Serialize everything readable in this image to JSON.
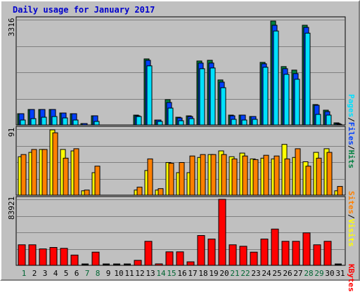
{
  "title": "Daily usage for January 2017",
  "colors": {
    "hits": "#008040",
    "files": "#0040ff",
    "pages": "#00e0ff",
    "visits": "#ffff00",
    "sites": "#ff8000",
    "kbytes": "#ff0000",
    "weekday": "#000000",
    "weekend": "#006633"
  },
  "chart_data": [
    {
      "type": "bar",
      "name": "hits_files_pages",
      "max_label": "3316",
      "ylim": [
        0,
        3316
      ],
      "legend": [
        {
          "name": "Pages",
          "color": "#00e0ff"
        },
        {
          "name": "Files",
          "color": "#0040ff"
        },
        {
          "name": "Hits",
          "color": "#008040"
        }
      ],
      "categories": [
        "1",
        "2",
        "3",
        "4",
        "5",
        "6",
        "7",
        "8",
        "9",
        "10",
        "11",
        "12",
        "13",
        "14",
        "15",
        "16",
        "17",
        "18",
        "19",
        "20",
        "21",
        "22",
        "23",
        "24",
        "25",
        "26",
        "27",
        "28",
        "29",
        "30",
        "31"
      ],
      "series": [
        {
          "name": "Hits",
          "values": [
            354,
            487,
            487,
            487,
            376,
            354,
            44,
            288,
            0,
            0,
            0,
            310,
            2080,
            155,
            797,
            243,
            287,
            2014,
            2036,
            1417,
            310,
            310,
            266,
            1971,
            3272,
            1838,
            1727,
            3140,
            642,
            465,
            66
          ]
        },
        {
          "name": "Files",
          "values": [
            354,
            487,
            487,
            487,
            376,
            354,
            44,
            288,
            0,
            0,
            0,
            288,
            2036,
            155,
            708,
            221,
            265,
            1949,
            1949,
            1350,
            288,
            310,
            266,
            1927,
            3140,
            1772,
            1617,
            3073,
            620,
            420,
            44
          ]
        },
        {
          "name": "Pages",
          "values": [
            155,
            199,
            243,
            265,
            221,
            155,
            0,
            111,
            0,
            0,
            0,
            266,
            1861,
            111,
            531,
            133,
            199,
            1771,
            1794,
            1173,
            177,
            155,
            177,
            1817,
            2959,
            1594,
            1439,
            2891,
            332,
            310,
            22
          ]
        }
      ]
    },
    {
      "type": "bar",
      "name": "visits_sites",
      "max_label": "91",
      "ylim": [
        0,
        91
      ],
      "legend": [
        {
          "name": "Sites",
          "color": "#ff8000"
        },
        {
          "name": "Visits",
          "color": "#ffff00"
        }
      ],
      "categories": [
        "1",
        "2",
        "3",
        "4",
        "5",
        "6",
        "7",
        "8",
        "9",
        "10",
        "11",
        "12",
        "13",
        "14",
        "15",
        "16",
        "17",
        "18",
        "19",
        "20",
        "21",
        "22",
        "23",
        "24",
        "25",
        "26",
        "27",
        "28",
        "29",
        "30",
        "31"
      ],
      "series": [
        {
          "name": "Visits",
          "values": [
            53,
            59,
            63,
            90,
            63,
            61,
            6,
            31,
            0,
            0,
            0,
            7,
            34,
            7,
            45,
            31,
            31,
            52,
            56,
            61,
            53,
            58,
            50,
            51,
            50,
            70,
            52,
            46,
            59,
            64,
            6
          ]
        },
        {
          "name": "Sites",
          "values": [
            56,
            63,
            63,
            86,
            51,
            64,
            7,
            40,
            0,
            0,
            0,
            11,
            50,
            9,
            44,
            45,
            54,
            56,
            56,
            56,
            50,
            54,
            49,
            55,
            54,
            50,
            64,
            40,
            51,
            59,
            12
          ]
        }
      ]
    },
    {
      "type": "bar",
      "name": "kbytes",
      "max_label": "83921",
      "ylim": [
        0,
        83921
      ],
      "legend": [
        {
          "name": "KBytes",
          "color": "#ff0000"
        }
      ],
      "categories": [
        "1",
        "2",
        "3",
        "4",
        "5",
        "6",
        "7",
        "8",
        "9",
        "10",
        "11",
        "12",
        "13",
        "14",
        "15",
        "16",
        "17",
        "18",
        "19",
        "20",
        "21",
        "22",
        "23",
        "24",
        "25",
        "26",
        "27",
        "28",
        "29",
        "30",
        "31"
      ],
      "series": [
        {
          "name": "KBytes",
          "values": [
            26120,
            26120,
            20900,
            22750,
            21640,
            13070,
            0,
            16790,
            0,
            0,
            0,
            6360,
            30560,
            1860,
            17160,
            17160,
            4470,
            37920,
            33450,
            83920,
            26120,
            24260,
            16790,
            33450,
            46140,
            30560,
            30560,
            41300,
            26120,
            30560,
            0
          ]
        }
      ]
    }
  ],
  "day_labels": [
    "1",
    "2",
    "3",
    "4",
    "5",
    "6",
    "7",
    "8",
    "9",
    "10",
    "11",
    "12",
    "13",
    "14",
    "15",
    "16",
    "17",
    "18",
    "19",
    "20",
    "21",
    "22",
    "23",
    "24",
    "25",
    "26",
    "27",
    "28",
    "29",
    "30",
    "31"
  ],
  "weekend_days": [
    1,
    7,
    8,
    14,
    15,
    21,
    22,
    28,
    29
  ]
}
